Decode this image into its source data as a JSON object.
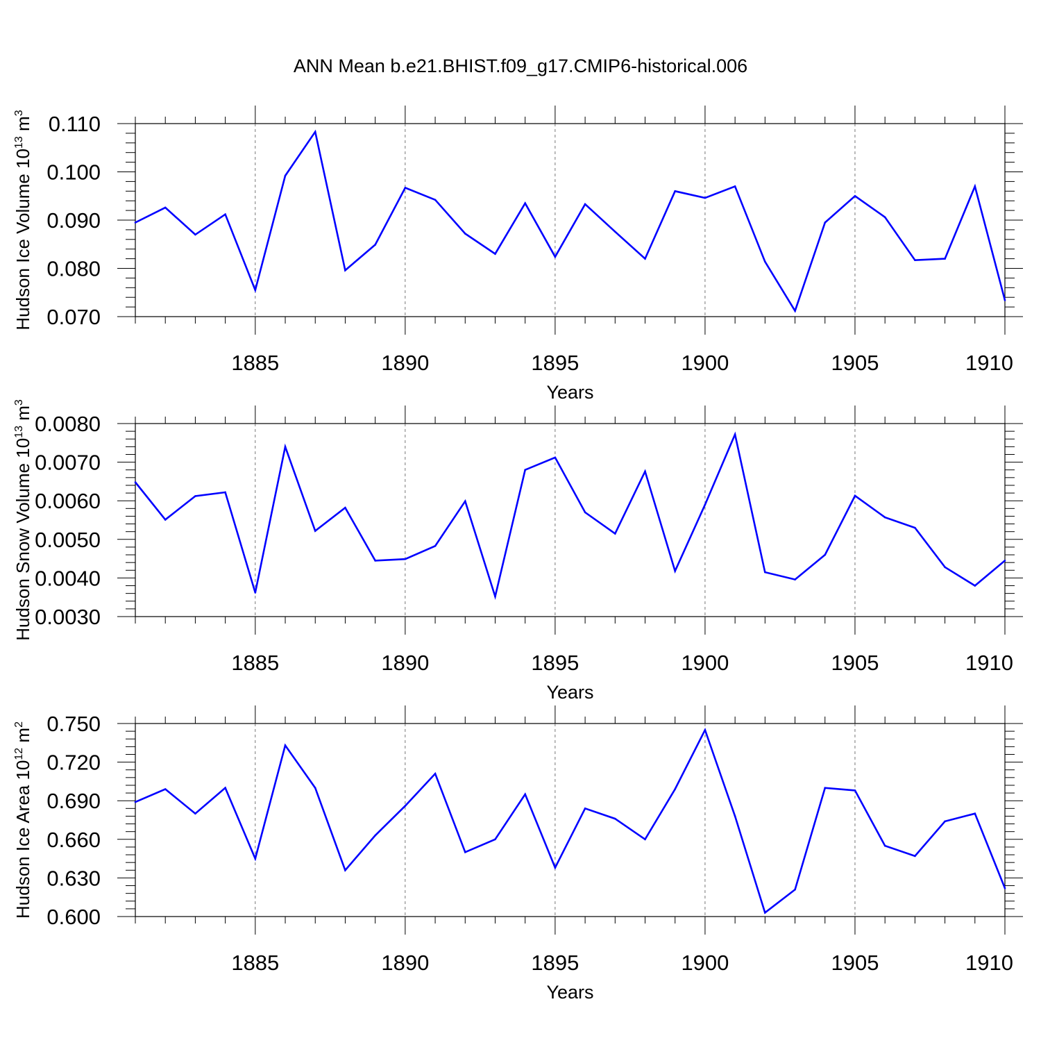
{
  "figure_title": "ANN Mean b.e21.BHIST.f09_g17.CMIP6-historical.006",
  "colors": {
    "line": "#0000ff",
    "axis": "#000000",
    "grid": "#555555"
  },
  "chart_data": [
    {
      "type": "line",
      "title": "",
      "ylabel_main": "Hudson Ice Volume 10",
      "ylabel_sup": "13",
      "ylabel_unit": " m",
      "ylabel_unit_sup": "3",
      "xlabel": "Years",
      "xlim": [
        1881,
        1910
      ],
      "ylim": [
        0.07,
        0.11
      ],
      "yticks": [
        0.07,
        0.08,
        0.09,
        0.1,
        0.11
      ],
      "yticklabels": [
        "0.070",
        "0.080",
        "0.090",
        "0.100",
        "0.110"
      ],
      "xticks": [
        1885,
        1890,
        1895,
        1900,
        1905,
        1910
      ],
      "xticklabels": [
        "1885",
        "1890",
        "1895",
        "1900",
        "1905",
        "1910"
      ],
      "grid": "vertical dashed at major x ticks",
      "series": [
        {
          "name": "Hudson Ice Volume",
          "x": [
            1881,
            1882,
            1883,
            1884,
            1885,
            1886,
            1887,
            1888,
            1889,
            1890,
            1891,
            1892,
            1893,
            1894,
            1895,
            1896,
            1897,
            1898,
            1899,
            1900,
            1901,
            1902,
            1903,
            1904,
            1905,
            1906,
            1907,
            1908,
            1909,
            1910
          ],
          "values": [
            0.0895,
            0.0926,
            0.087,
            0.0912,
            0.0755,
            0.0992,
            0.1083,
            0.0796,
            0.0849,
            0.0967,
            0.0942,
            0.0872,
            0.083,
            0.0935,
            0.0824,
            0.0933,
            0.0876,
            0.082,
            0.096,
            0.0946,
            0.097,
            0.0814,
            0.0712,
            0.0895,
            0.095,
            0.0906,
            0.0817,
            0.082,
            0.097,
            0.0734
          ]
        }
      ]
    },
    {
      "type": "line",
      "title": "",
      "ylabel_main": "Hudson Snow Volume 10",
      "ylabel_sup": "13",
      "ylabel_unit": " m",
      "ylabel_unit_sup": "3",
      "xlabel": "Years",
      "xlim": [
        1881,
        1910
      ],
      "ylim": [
        0.003,
        0.008
      ],
      "yticks": [
        0.003,
        0.004,
        0.005,
        0.006,
        0.007,
        0.008
      ],
      "yticklabels": [
        "0.0030",
        "0.0040",
        "0.0050",
        "0.0060",
        "0.0070",
        "0.0080"
      ],
      "xticks": [
        1885,
        1890,
        1895,
        1900,
        1905,
        1910
      ],
      "xticklabels": [
        "1885",
        "1890",
        "1895",
        "1900",
        "1905",
        "1910"
      ],
      "grid": "vertical dashed at major x ticks",
      "series": [
        {
          "name": "Hudson Snow Volume",
          "x": [
            1881,
            1882,
            1883,
            1884,
            1885,
            1886,
            1887,
            1888,
            1889,
            1890,
            1891,
            1892,
            1893,
            1894,
            1895,
            1896,
            1897,
            1898,
            1899,
            1900,
            1901,
            1902,
            1903,
            1904,
            1905,
            1906,
            1907,
            1908,
            1909,
            1910
          ],
          "values": [
            0.00648,
            0.00551,
            0.00612,
            0.00622,
            0.00362,
            0.0074,
            0.00522,
            0.00582,
            0.00445,
            0.00449,
            0.00483,
            0.00599,
            0.00352,
            0.0068,
            0.00712,
            0.0057,
            0.00515,
            0.00676,
            0.00418,
            0.0059,
            0.00772,
            0.00415,
            0.00396,
            0.0046,
            0.00613,
            0.00557,
            0.0053,
            0.00428,
            0.0038,
            0.00445
          ]
        }
      ]
    },
    {
      "type": "line",
      "title": "",
      "ylabel_main": "Hudson Ice Area 10",
      "ylabel_sup": "12",
      "ylabel_unit": " m",
      "ylabel_unit_sup": "2",
      "xlabel": "Years",
      "xlim": [
        1881,
        1910
      ],
      "ylim": [
        0.6,
        0.75
      ],
      "yticks": [
        0.6,
        0.63,
        0.66,
        0.69,
        0.72,
        0.75
      ],
      "yticklabels": [
        "0.600",
        "0.630",
        "0.660",
        "0.690",
        "0.720",
        "0.750"
      ],
      "xticks": [
        1885,
        1890,
        1895,
        1900,
        1905,
        1910
      ],
      "xticklabels": [
        "1885",
        "1890",
        "1895",
        "1900",
        "1905",
        "1910"
      ],
      "grid": "vertical dashed at major x ticks",
      "series": [
        {
          "name": "Hudson Ice Area",
          "x": [
            1881,
            1882,
            1883,
            1884,
            1885,
            1886,
            1887,
            1888,
            1889,
            1890,
            1891,
            1892,
            1893,
            1894,
            1895,
            1896,
            1897,
            1898,
            1899,
            1900,
            1901,
            1902,
            1903,
            1904,
            1905,
            1906,
            1907,
            1908,
            1909,
            1910
          ],
          "values": [
            0.689,
            0.699,
            0.68,
            0.7,
            0.645,
            0.733,
            0.7,
            0.636,
            0.663,
            0.686,
            0.711,
            0.65,
            0.66,
            0.695,
            0.638,
            0.684,
            0.676,
            0.66,
            0.699,
            0.745,
            0.678,
            0.603,
            0.621,
            0.7,
            0.698,
            0.655,
            0.647,
            0.674,
            0.68,
            0.622
          ]
        }
      ]
    }
  ]
}
